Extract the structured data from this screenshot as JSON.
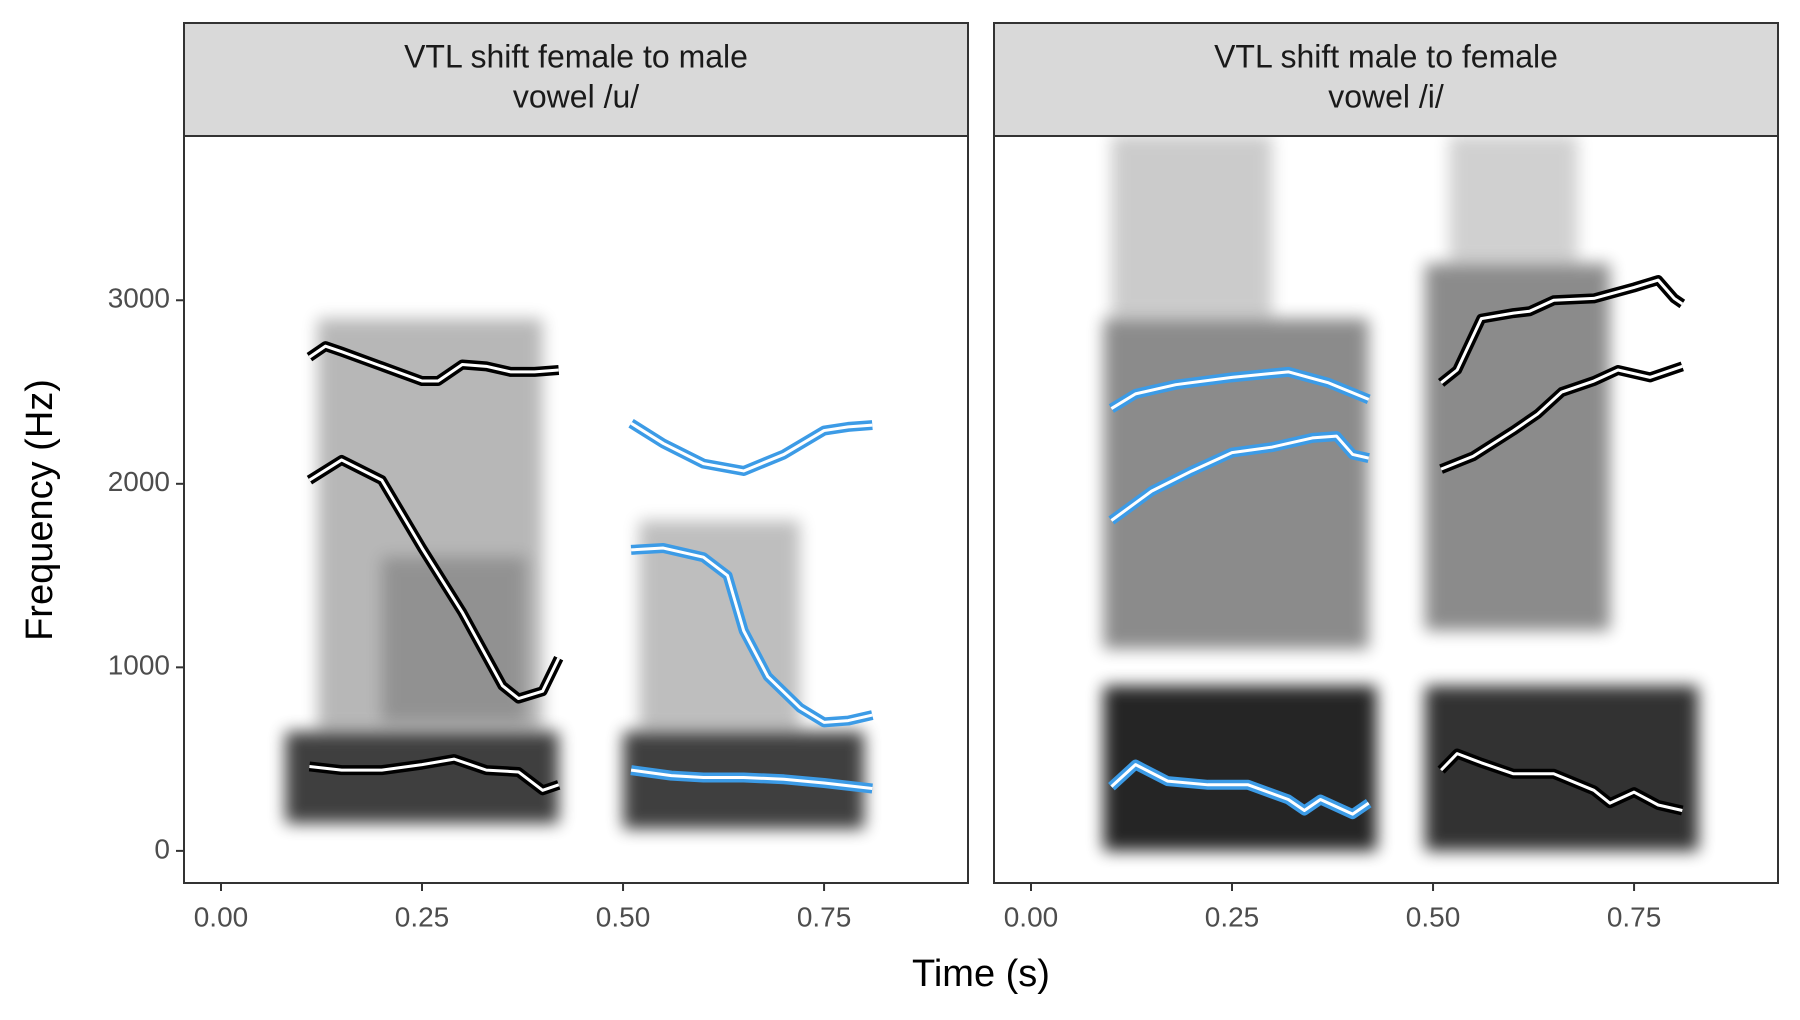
{
  "axis_labels": {
    "x": "Time (s)",
    "y": "Frequency (Hz)"
  },
  "chart_data": [
    {
      "type": "line",
      "title": [
        "VTL shift female to male",
        "vowel /u/"
      ],
      "xlim": [
        -0.046,
        0.929
      ],
      "ylim": [
        -175,
        3895
      ],
      "xticks": [
        {
          "value": 0,
          "label": "0.00"
        },
        {
          "value": 0.25,
          "label": "0.25"
        },
        {
          "value": 0.5,
          "label": "0.50"
        },
        {
          "value": 0.75,
          "label": "0.75"
        }
      ],
      "yticks": [
        0,
        1000,
        2000,
        3000
      ],
      "series": [
        {
          "color": "#000000",
          "x": [
            0.11,
            0.13,
            0.15,
            0.2,
            0.25,
            0.27,
            0.3,
            0.33,
            0.36,
            0.39,
            0.42
          ],
          "values": [
            2690,
            2750,
            2720,
            2640,
            2560,
            2560,
            2650,
            2640,
            2610,
            2610,
            2620
          ]
        },
        {
          "color": "#000000",
          "x": [
            0.11,
            0.15,
            0.2,
            0.25,
            0.3,
            0.35,
            0.37,
            0.4,
            0.42
          ],
          "values": [
            2020,
            2130,
            2020,
            1650,
            1300,
            900,
            830,
            870,
            1050
          ]
        },
        {
          "color": "#000000",
          "x": [
            0.11,
            0.15,
            0.2,
            0.25,
            0.29,
            0.33,
            0.37,
            0.4,
            0.42
          ],
          "values": [
            460,
            440,
            440,
            470,
            500,
            440,
            430,
            330,
            360
          ]
        },
        {
          "color": "#3c9be6",
          "x": [
            0.51,
            0.55,
            0.6,
            0.65,
            0.7,
            0.75,
            0.78,
            0.81
          ],
          "values": [
            2330,
            2220,
            2110,
            2070,
            2160,
            2290,
            2310,
            2320
          ]
        },
        {
          "color": "#3c9be6",
          "x": [
            0.51,
            0.55,
            0.6,
            0.63,
            0.65,
            0.68,
            0.72,
            0.75,
            0.78,
            0.81
          ],
          "values": [
            1640,
            1650,
            1600,
            1500,
            1200,
            950,
            780,
            700,
            710,
            740
          ]
        },
        {
          "color": "#3c9be6",
          "x": [
            0.51,
            0.56,
            0.6,
            0.65,
            0.7,
            0.75,
            0.81
          ],
          "values": [
            440,
            410,
            400,
            400,
            390,
            370,
            340
          ]
        }
      ]
    },
    {
      "type": "line",
      "title": [
        "VTL shift male to female",
        "vowel /i/"
      ],
      "xlim": [
        -0.046,
        0.929
      ],
      "ylim": [
        -175,
        3895
      ],
      "xticks": [
        {
          "value": 0,
          "label": "0.00"
        },
        {
          "value": 0.25,
          "label": "0.25"
        },
        {
          "value": 0.5,
          "label": "0.50"
        },
        {
          "value": 0.75,
          "label": "0.75"
        }
      ],
      "series": [
        {
          "color": "#3c9be6",
          "x": [
            0.1,
            0.13,
            0.18,
            0.25,
            0.32,
            0.37,
            0.42
          ],
          "values": [
            2410,
            2490,
            2540,
            2580,
            2610,
            2550,
            2460
          ]
        },
        {
          "color": "#3c9be6",
          "x": [
            0.1,
            0.15,
            0.2,
            0.25,
            0.3,
            0.35,
            0.38,
            0.4,
            0.42
          ],
          "values": [
            1800,
            1960,
            2070,
            2170,
            2200,
            2250,
            2260,
            2160,
            2140
          ]
        },
        {
          "color": "#3c9be6",
          "x": [
            0.1,
            0.13,
            0.17,
            0.22,
            0.27,
            0.32,
            0.34,
            0.36,
            0.4,
            0.42
          ],
          "values": [
            350,
            470,
            380,
            360,
            360,
            280,
            220,
            280,
            200,
            260
          ]
        },
        {
          "color": "#000000",
          "x": [
            0.51,
            0.53,
            0.56,
            0.6,
            0.62,
            0.65,
            0.7,
            0.75,
            0.78,
            0.8,
            0.81
          ],
          "values": [
            2550,
            2620,
            2900,
            2930,
            2940,
            3000,
            3010,
            3070,
            3110,
            3010,
            2980
          ]
        },
        {
          "color": "#000000",
          "x": [
            0.51,
            0.55,
            0.6,
            0.63,
            0.66,
            0.7,
            0.73,
            0.77,
            0.81
          ],
          "values": [
            2080,
            2150,
            2290,
            2380,
            2500,
            2560,
            2620,
            2580,
            2640
          ]
        },
        {
          "color": "#000000",
          "x": [
            0.51,
            0.53,
            0.56,
            0.6,
            0.65,
            0.7,
            0.72,
            0.75,
            0.78,
            0.81
          ],
          "values": [
            440,
            530,
            480,
            420,
            420,
            330,
            260,
            320,
            250,
            220
          ]
        }
      ]
    }
  ]
}
